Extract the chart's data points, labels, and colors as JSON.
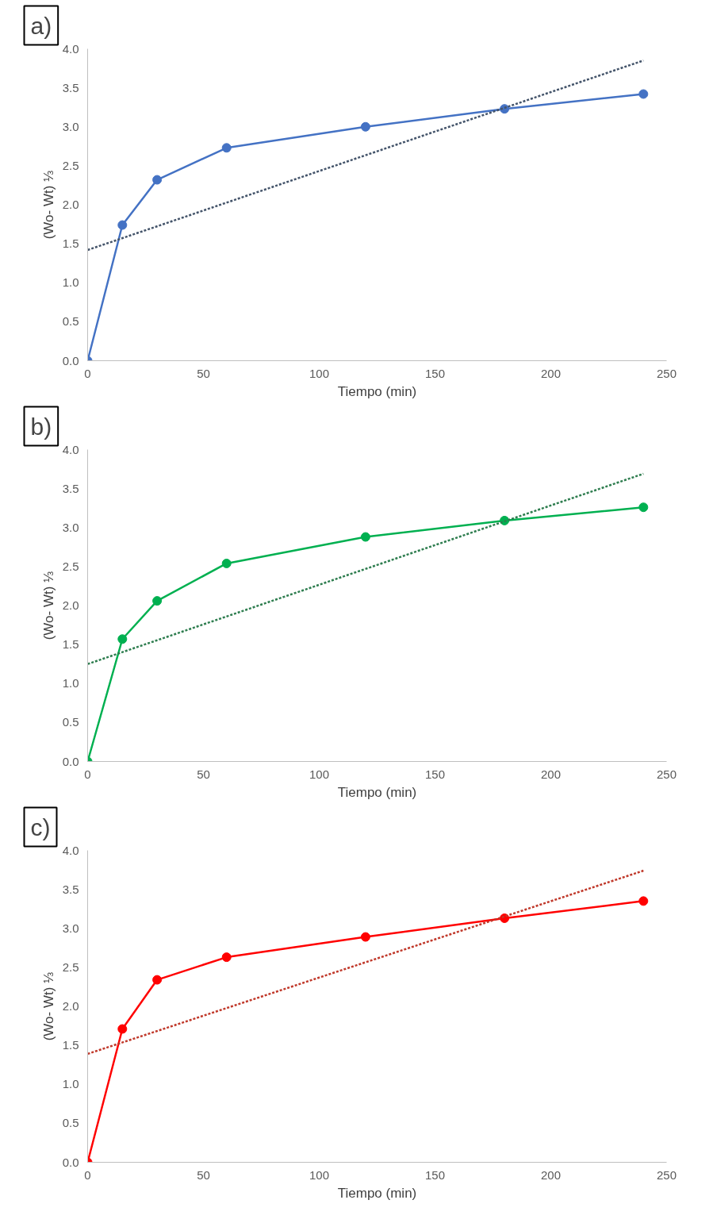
{
  "chart_data": [
    {
      "type": "line",
      "annotations": [
        "a)"
      ],
      "xlabel": "Tiempo (min)",
      "ylabel": "(Wo- Wt) ⅓",
      "xlim": [
        0,
        250
      ],
      "xticks": [
        0,
        50,
        100,
        150,
        200,
        250
      ],
      "ylim": [
        0,
        4
      ],
      "yticks": [
        {
          "value": 0,
          "label": "0.0"
        },
        {
          "value": 0.5,
          "label": "0.5"
        },
        {
          "value": 1,
          "label": "1.0"
        },
        {
          "value": 1.5,
          "label": "1.5"
        },
        {
          "value": 2,
          "label": "2.0"
        },
        {
          "value": 2.5,
          "label": "2.5"
        },
        {
          "value": 3,
          "label": "3.0"
        },
        {
          "value": 3.5,
          "label": "3.5"
        },
        {
          "value": 4,
          "label": "4.0"
        }
      ],
      "grid": false,
      "series": [
        {
          "color": "#4472c4",
          "marker": "circle",
          "line_style": "solid",
          "x": [
            0,
            15,
            30,
            60,
            120,
            180,
            240
          ],
          "values": [
            0,
            1.74,
            2.32,
            2.73,
            3.0,
            3.23,
            3.42
          ]
        },
        {
          "color": "#44546a",
          "marker": "none",
          "line_style": "dotted",
          "x": [
            0,
            240
          ],
          "values": [
            1.42,
            3.85
          ]
        }
      ]
    },
    {
      "type": "line",
      "annotations": [
        "b)"
      ],
      "xlabel": "Tiempo (min)",
      "ylabel": "(Wo- Wt) ⅓",
      "xlim": [
        0,
        250
      ],
      "xticks": [
        0,
        50,
        100,
        150,
        200,
        250
      ],
      "ylim": [
        0,
        4
      ],
      "yticks": [
        {
          "value": 0,
          "label": "0.0"
        },
        {
          "value": 0.5,
          "label": "0.5"
        },
        {
          "value": 1,
          "label": "1.0"
        },
        {
          "value": 1.5,
          "label": "1.5"
        },
        {
          "value": 2,
          "label": "2.0"
        },
        {
          "value": 2.5,
          "label": "2.5"
        },
        {
          "value": 3,
          "label": "3.0"
        },
        {
          "value": 3.5,
          "label": "3.5"
        },
        {
          "value": 4,
          "label": "4.0"
        }
      ],
      "grid": false,
      "series": [
        {
          "color": "#00b050",
          "marker": "circle",
          "line_style": "solid",
          "x": [
            0,
            15,
            30,
            60,
            120,
            180,
            240
          ],
          "values": [
            0,
            1.57,
            2.06,
            2.54,
            2.88,
            3.09,
            3.26
          ]
        },
        {
          "color": "#2e7d4f",
          "marker": "none",
          "line_style": "dotted",
          "x": [
            0,
            240
          ],
          "values": [
            1.25,
            3.69
          ]
        }
      ]
    },
    {
      "type": "line",
      "annotations": [
        "c)"
      ],
      "xlabel": "Tiempo (min)",
      "ylabel": "(Wo- Wt) ⅓",
      "xlim": [
        0,
        250
      ],
      "xticks": [
        0,
        50,
        100,
        150,
        200,
        250
      ],
      "ylim": [
        0,
        4
      ],
      "yticks": [
        {
          "value": 0,
          "label": "0.0"
        },
        {
          "value": 0.5,
          "label": "0.5"
        },
        {
          "value": 1,
          "label": "1.0"
        },
        {
          "value": 1.5,
          "label": "1.5"
        },
        {
          "value": 2,
          "label": "2.0"
        },
        {
          "value": 2.5,
          "label": "2.5"
        },
        {
          "value": 3,
          "label": "3.0"
        },
        {
          "value": 3.5,
          "label": "3.5"
        },
        {
          "value": 4,
          "label": "4.0"
        }
      ],
      "grid": false,
      "series": [
        {
          "color": "#ff0000",
          "marker": "circle",
          "line_style": "solid",
          "x": [
            0,
            15,
            30,
            60,
            120,
            180,
            240
          ],
          "values": [
            0,
            1.71,
            2.34,
            2.63,
            2.89,
            3.13,
            3.35
          ]
        },
        {
          "color": "#c0392b",
          "marker": "none",
          "line_style": "dotted",
          "x": [
            0,
            240
          ],
          "values": [
            1.39,
            3.74
          ]
        }
      ]
    }
  ]
}
